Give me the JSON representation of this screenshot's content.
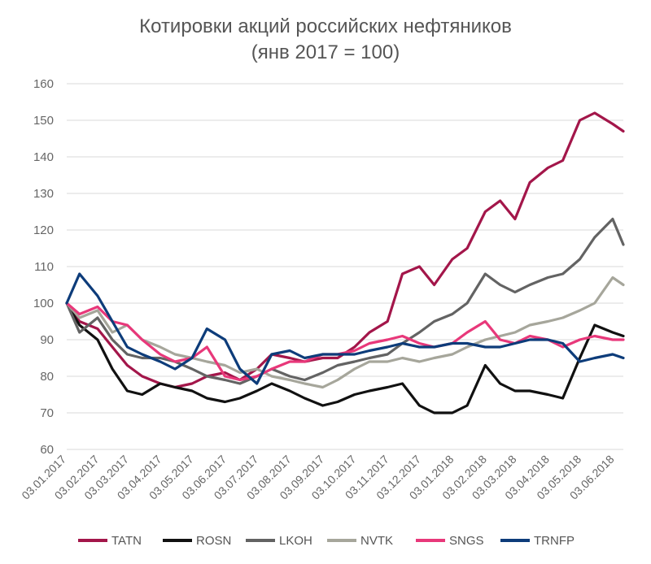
{
  "chart_data": {
    "type": "line",
    "title": "Котировки акций российских нефтяников",
    "subtitle": "(янв 2017 = 100)",
    "xlabel": "",
    "ylabel": "",
    "ylim": [
      60,
      160
    ],
    "yticks": [
      "60",
      "70",
      "80",
      "90",
      "100",
      "110",
      "120",
      "130",
      "140",
      "150",
      "160"
    ],
    "xticks": [
      "03.01.2017",
      "03.02.2017",
      "03.03.2017",
      "03.04.2017",
      "03.05.2017",
      "03.06.2017",
      "03.07.2017",
      "03.08.2017",
      "03.09.2017",
      "03.10.2017",
      "03.11.2017",
      "03.12.2017",
      "03.01.2018",
      "03.02.2018",
      "03.03.2018",
      "03.04.2018",
      "03.05.2018",
      "03.06.2018"
    ],
    "grid": "horizontal",
    "legend_position": "bottom",
    "x_end": "11.06.2018",
    "x": [
      "03.01.2017",
      "15.01.2017",
      "01.02.2017",
      "15.02.2017",
      "01.03.2017",
      "15.03.2017",
      "01.04.2017",
      "15.04.2017",
      "01.05.2017",
      "15.05.2017",
      "01.06.2017",
      "15.06.2017",
      "01.07.2017",
      "15.07.2017",
      "01.08.2017",
      "15.08.2017",
      "01.09.2017",
      "15.09.2017",
      "01.10.2017",
      "15.10.2017",
      "01.11.2017",
      "15.11.2017",
      "01.12.2017",
      "15.12.2017",
      "01.01.2018",
      "15.01.2018",
      "01.02.2018",
      "15.02.2018",
      "01.03.2018",
      "15.03.2018",
      "01.04.2018",
      "15.04.2018",
      "01.05.2018",
      "15.05.2018",
      "01.06.2018",
      "11.06.2018"
    ],
    "series": [
      {
        "name": "TATN",
        "color": "#a3164a",
        "values": [
          100,
          95,
          93,
          88,
          83,
          80,
          78,
          77,
          78,
          80,
          81,
          79,
          82,
          86,
          85,
          84,
          85,
          85,
          88,
          92,
          95,
          108,
          110,
          105,
          112,
          115,
          125,
          128,
          123,
          133,
          137,
          139,
          150,
          152,
          149,
          147
        ]
      },
      {
        "name": "ROSN",
        "color": "#111111",
        "values": [
          100,
          94,
          90,
          82,
          76,
          75,
          78,
          77,
          76,
          74,
          73,
          74,
          76,
          78,
          76,
          74,
          72,
          73,
          75,
          76,
          77,
          78,
          72,
          70,
          70,
          72,
          83,
          78,
          76,
          76,
          75,
          74,
          85,
          94,
          92,
          91
        ]
      },
      {
        "name": "LKOH",
        "color": "#636363",
        "values": [
          100,
          92,
          96,
          90,
          86,
          85,
          85,
          84,
          82,
          80,
          79,
          78,
          80,
          82,
          80,
          79,
          81,
          83,
          84,
          85,
          86,
          89,
          92,
          95,
          97,
          100,
          108,
          105,
          103,
          105,
          107,
          108,
          112,
          118,
          123,
          116
        ]
      },
      {
        "name": "NVTK",
        "color": "#a6a69b",
        "values": [
          100,
          96,
          98,
          92,
          94,
          90,
          88,
          86,
          85,
          84,
          83,
          81,
          82,
          80,
          79,
          78,
          77,
          79,
          82,
          84,
          84,
          85,
          84,
          85,
          86,
          88,
          90,
          91,
          92,
          94,
          95,
          96,
          98,
          100,
          107,
          105
        ]
      },
      {
        "name": "SNGS",
        "color": "#e8387a",
        "values": [
          100,
          97,
          99,
          95,
          94,
          90,
          86,
          84,
          85,
          88,
          80,
          79,
          80,
          82,
          84,
          84,
          86,
          86,
          87,
          89,
          90,
          91,
          89,
          88,
          89,
          92,
          95,
          90,
          89,
          91,
          90,
          88,
          90,
          91,
          90,
          90
        ]
      },
      {
        "name": "TRNFP",
        "color": "#0d3c7a",
        "values": [
          100,
          108,
          102,
          95,
          88,
          86,
          84,
          82,
          85,
          93,
          90,
          82,
          78,
          86,
          87,
          85,
          86,
          86,
          86,
          87,
          88,
          89,
          88,
          88,
          89,
          89,
          88,
          88,
          89,
          90,
          90,
          89,
          84,
          85,
          86,
          85
        ]
      }
    ]
  }
}
